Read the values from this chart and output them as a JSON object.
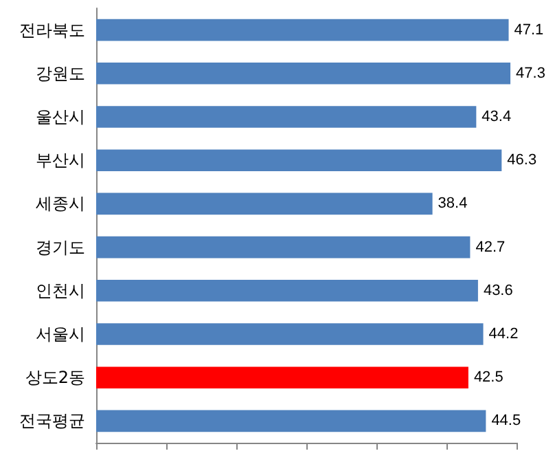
{
  "chart_data": {
    "type": "bar",
    "orientation": "horizontal",
    "categories": [
      "전라북도",
      "강원도",
      "울산시",
      "부산시",
      "세종시",
      "경기도",
      "인천시",
      "서울시",
      "상도2동",
      "전국평균"
    ],
    "values": [
      47.1,
      47.3,
      43.4,
      46.3,
      38.4,
      42.7,
      43.6,
      44.2,
      42.5,
      44.5
    ],
    "colors": [
      "#4f81bd",
      "#4f81bd",
      "#4f81bd",
      "#4f81bd",
      "#4f81bd",
      "#4f81bd",
      "#4f81bd",
      "#4f81bd",
      "#ff0000",
      "#4f81bd"
    ],
    "xlim": [
      0,
      48
    ],
    "xticks": [
      {
        "value": 0,
        "label": null
      },
      {
        "value": 8,
        "label": null
      },
      {
        "value": 16,
        "label": null
      },
      {
        "value": 24,
        "label": null
      },
      {
        "value": 32,
        "label": null
      },
      {
        "value": 40,
        "label": null
      },
      {
        "value": 48,
        "label": null
      }
    ],
    "data_labels": true,
    "grid": false
  }
}
